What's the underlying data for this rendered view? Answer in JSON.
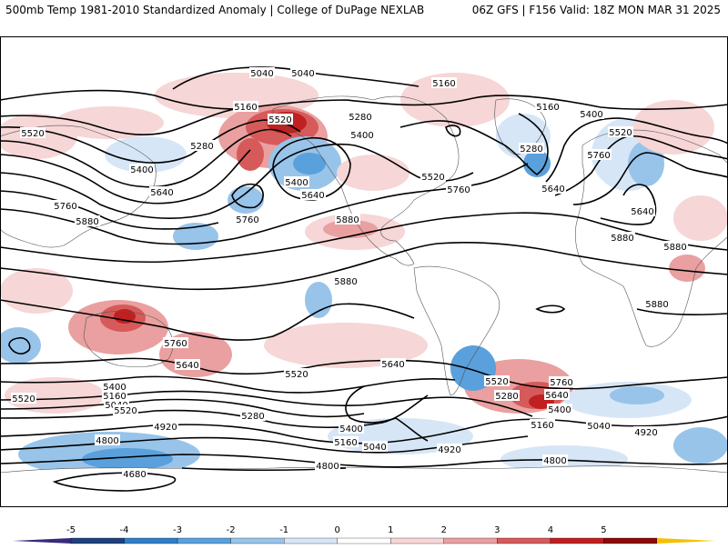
{
  "header": {
    "left": "500mb Temp 1981-2010 Standardized Anomaly | College of DuPage NEXLAB",
    "right": "06Z GFS | F156 Valid: 18Z MON MAR 31 2025"
  },
  "colorbar": {
    "ticks": [
      "-5",
      "-4",
      "-3",
      "-2",
      "-1",
      "0",
      "1",
      "2",
      "3",
      "4",
      "5"
    ],
    "colors": [
      "#3a2a7a",
      "#1f3f7f",
      "#2f7fc8",
      "#5aa0dc",
      "#98c4ea",
      "#d6e6f6",
      "#ffffff",
      "#f6d6d6",
      "#eaa0a0",
      "#d65a5a",
      "#c02020",
      "#8a0a0a",
      "#f5c000"
    ]
  },
  "contours": {
    "labels": [
      {
        "id": "c1",
        "text": "5040"
      },
      {
        "id": "c2",
        "text": "5040"
      },
      {
        "id": "c3",
        "text": "5160"
      },
      {
        "id": "c4",
        "text": "5160"
      },
      {
        "id": "c5",
        "text": "5160"
      },
      {
        "id": "c6",
        "text": "5520"
      },
      {
        "id": "c7",
        "text": "5520"
      },
      {
        "id": "c8",
        "text": "5400"
      },
      {
        "id": "c9",
        "text": "5280"
      },
      {
        "id": "c10",
        "text": "5280"
      },
      {
        "id": "c11",
        "text": "5400"
      },
      {
        "id": "c12",
        "text": "5280"
      },
      {
        "id": "c13",
        "text": "5520"
      },
      {
        "id": "c14",
        "text": "5400"
      },
      {
        "id": "c15",
        "text": "5400"
      },
      {
        "id": "c16",
        "text": "5640"
      },
      {
        "id": "c17",
        "text": "5640"
      },
      {
        "id": "c18",
        "text": "5760"
      },
      {
        "id": "c19",
        "text": "5520"
      },
      {
        "id": "c20",
        "text": "5760"
      },
      {
        "id": "c21",
        "text": "5640"
      },
      {
        "id": "c22",
        "text": "5760"
      },
      {
        "id": "c23",
        "text": "5880"
      },
      {
        "id": "c24",
        "text": "5880"
      },
      {
        "id": "c25",
        "text": "5880"
      },
      {
        "id": "c26",
        "text": "5640"
      },
      {
        "id": "c27",
        "text": "5880"
      },
      {
        "id": "c28",
        "text": "5880"
      },
      {
        "id": "c29",
        "text": "5760"
      },
      {
        "id": "c30",
        "text": "5640"
      },
      {
        "id": "c31",
        "text": "5880"
      },
      {
        "id": "c32",
        "text": "5760"
      },
      {
        "id": "c33",
        "text": "5640"
      },
      {
        "id": "c34",
        "text": "5520"
      },
      {
        "id": "c35",
        "text": "5520"
      },
      {
        "id": "c36",
        "text": "5400"
      },
      {
        "id": "c37",
        "text": "5160"
      },
      {
        "id": "c38",
        "text": "5040"
      },
      {
        "id": "c39",
        "text": "5280"
      },
      {
        "id": "c40",
        "text": "5400"
      },
      {
        "id": "c41",
        "text": "5160"
      },
      {
        "id": "c42",
        "text": "5040"
      },
      {
        "id": "c43",
        "text": "4920"
      },
      {
        "id": "c44",
        "text": "4800"
      },
      {
        "id": "c45",
        "text": "4680"
      },
      {
        "id": "c46",
        "text": "4920"
      },
      {
        "id": "c47",
        "text": "4800"
      },
      {
        "id": "c48",
        "text": "5520"
      },
      {
        "id": "c49",
        "text": "5280"
      },
      {
        "id": "c50",
        "text": "5760"
      },
      {
        "id": "c51",
        "text": "5640"
      },
      {
        "id": "c52",
        "text": "5400"
      },
      {
        "id": "c53",
        "text": "5160"
      },
      {
        "id": "c54",
        "text": "5040"
      },
      {
        "id": "c55",
        "text": "4920"
      },
      {
        "id": "c56",
        "text": "4800"
      },
      {
        "id": "c57",
        "text": "5520"
      }
    ]
  }
}
